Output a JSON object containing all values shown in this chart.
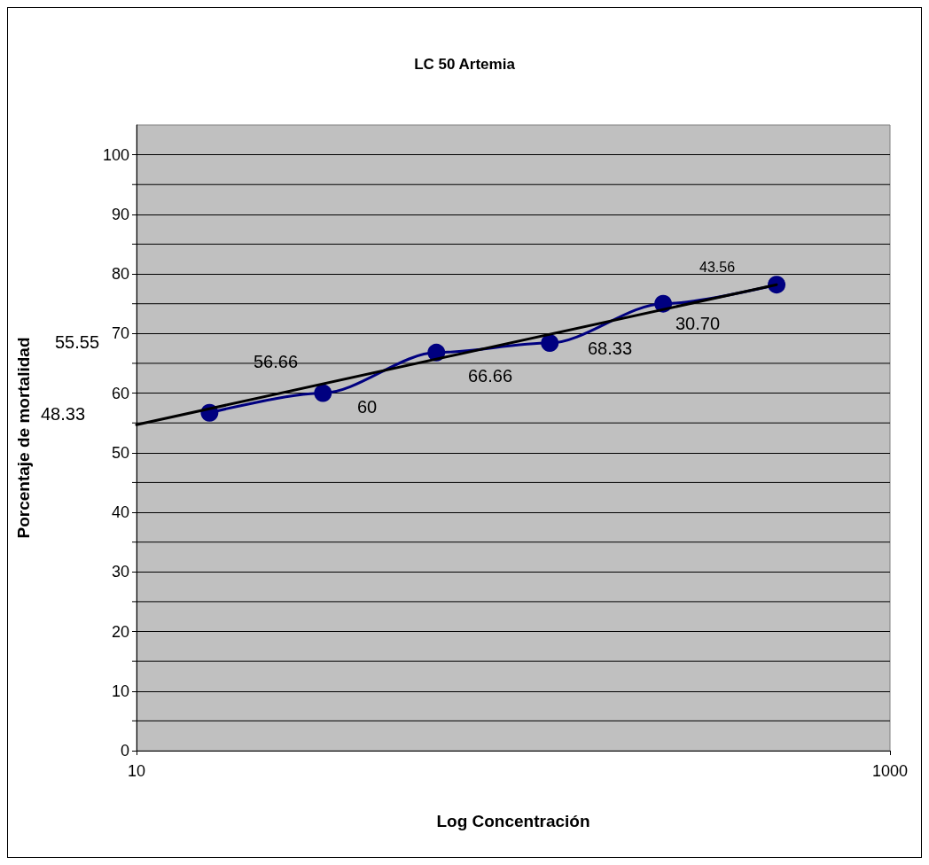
{
  "chart_data": {
    "type": "line",
    "title": "LC 50 Artemia",
    "xlabel": "Log Concentración",
    "ylabel": "Porcentaje de mortalidad",
    "log": "x",
    "xlim": [
      10,
      1000
    ],
    "xticks": [
      10,
      1000
    ],
    "ylim": [
      0,
      105
    ],
    "yticks": [
      0,
      {
        "value": 5,
        "label": null
      },
      10,
      {
        "value": 15,
        "label": null
      },
      20,
      {
        "value": 25,
        "label": null
      },
      30,
      {
        "value": 35,
        "label": null
      },
      40,
      {
        "value": 45,
        "label": null
      },
      50,
      {
        "value": 55,
        "label": null
      },
      60,
      {
        "value": 65,
        "label": null
      },
      70,
      {
        "value": 75,
        "label": null
      },
      80,
      {
        "value": 85,
        "label": null
      },
      90,
      {
        "value": 95,
        "label": null
      },
      100
    ],
    "grid": "y",
    "marker": "circle",
    "series": [
      {
        "color": "#000080",
        "x": [
          15.625,
          31.25,
          62.5,
          125,
          250,
          500
        ],
        "values": [
          56.7,
          60,
          66.8,
          68.4,
          75,
          78.2
        ]
      },
      {
        "type": "line",
        "marker": "none",
        "color": "#000000",
        "x": [
          10,
          500
        ],
        "values": [
          54.7,
          78.2
        ]
      }
    ],
    "annotations": [
      "48.33",
      "55.55",
      "56.66",
      "60",
      "66.66",
      "68.33",
      "30.70",
      "43.56"
    ]
  }
}
